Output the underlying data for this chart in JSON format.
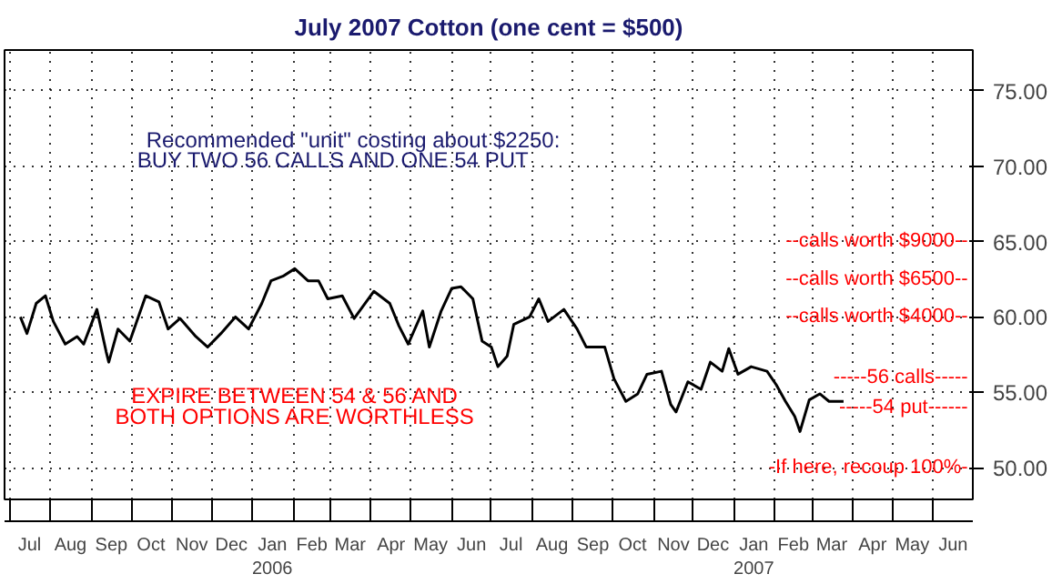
{
  "chart_data": {
    "type": "line",
    "title": "July 2007 Cotton (one cent = $500)",
    "x": [
      "2005-07-09",
      "2005-07-14",
      "2005-07-21",
      "2005-07-28",
      "2005-08-03",
      "2005-08-12",
      "2005-08-21",
      "2005-08-26",
      "2005-09-05",
      "2005-09-12",
      "2005-09-14",
      "2005-09-21",
      "2005-09-30",
      "2005-10-12",
      "2005-10-22",
      "2005-10-29",
      "2005-11-07",
      "2005-11-19",
      "2005-11-28",
      "2005-12-08",
      "2005-12-19",
      "2005-12-29",
      "2006-01-08",
      "2006-01-15",
      "2006-01-24",
      "2006-02-02",
      "2006-02-12",
      "2006-02-20",
      "2006-02-27",
      "2006-03-10",
      "2006-03-19",
      "2006-04-03",
      "2006-04-15",
      "2006-04-22",
      "2006-04-29",
      "2006-05-10",
      "2006-05-15",
      "2006-05-24",
      "2006-06-01",
      "2006-06-08",
      "2006-06-17",
      "2006-06-24",
      "2006-07-01",
      "2006-07-06",
      "2006-07-13",
      "2006-07-18",
      "2006-07-30",
      "2006-08-06",
      "2006-08-13",
      "2006-08-25",
      "2006-09-04",
      "2006-09-11",
      "2006-09-25",
      "2006-10-02",
      "2006-10-11",
      "2006-10-20",
      "2006-10-27",
      "2006-11-07",
      "2006-11-14",
      "2006-11-18",
      "2006-11-27",
      "2006-12-07",
      "2006-12-14",
      "2006-12-23",
      "2006-12-28",
      "2007-01-04",
      "2007-01-14",
      "2007-01-26",
      "2007-02-02",
      "2007-02-09",
      "2007-02-16",
      "2007-02-20",
      "2007-02-27",
      "2007-03-07",
      "2007-03-14",
      "2007-03-25"
    ],
    "series": [
      {
        "color": "#000000",
        "values": [
          60.0,
          58.9,
          60.9,
          61.4,
          59.7,
          58.2,
          58.7,
          58.2,
          60.5,
          57.7,
          57.0,
          59.2,
          58.4,
          61.4,
          61.0,
          59.2,
          59.9,
          58.7,
          58.0,
          58.9,
          60.0,
          59.2,
          60.9,
          62.4,
          62.7,
          63.2,
          62.4,
          62.4,
          61.2,
          61.4,
          59.9,
          61.7,
          60.9,
          59.4,
          58.2,
          60.4,
          58.0,
          60.4,
          61.9,
          62.0,
          61.2,
          58.4,
          58.0,
          56.7,
          57.4,
          59.5,
          60.0,
          61.2,
          59.7,
          60.5,
          59.2,
          58.0,
          58.0,
          55.9,
          54.4,
          54.9,
          56.2,
          56.4,
          54.2,
          53.7,
          55.7,
          55.2,
          57.0,
          56.4,
          57.9,
          56.2,
          56.7,
          56.4,
          55.5,
          54.4,
          53.4,
          52.4,
          54.5,
          54.9,
          54.4,
          54.4
        ]
      }
    ],
    "xlim": [
      "2005-06-27",
      "2007-07-01"
    ],
    "xticks": [
      {
        "value": "2005-07-01",
        "label": null
      },
      {
        "value": "2005-07-16",
        "label": "Jul"
      },
      {
        "value": "2005-08-01",
        "label": null
      },
      {
        "value": "2005-08-16",
        "label": "Aug"
      },
      {
        "value": "2005-09-01",
        "label": null
      },
      {
        "value": "2005-09-16",
        "label": "Sep"
      },
      {
        "value": "2005-10-01",
        "label": null
      },
      {
        "value": "2005-10-16",
        "label": "Oct"
      },
      {
        "value": "2005-11-01",
        "label": null
      },
      {
        "value": "2005-11-16",
        "label": "Nov"
      },
      {
        "value": "2005-12-01",
        "label": null
      },
      {
        "value": "2005-12-16",
        "label": "Dec"
      },
      {
        "value": "2006-01-01",
        "label": null
      },
      {
        "value": "2006-01-16",
        "label": "Jan\n2006"
      },
      {
        "value": "2006-02-01",
        "label": null
      },
      {
        "value": "2006-02-15",
        "label": "Feb"
      },
      {
        "value": "2006-03-01",
        "label": null
      },
      {
        "value": "2006-03-16",
        "label": "Mar"
      },
      {
        "value": "2006-04-01",
        "label": null
      },
      {
        "value": "2006-04-16",
        "label": "Apr"
      },
      {
        "value": "2006-05-01",
        "label": null
      },
      {
        "value": "2006-05-16",
        "label": "May"
      },
      {
        "value": "2006-06-01",
        "label": null
      },
      {
        "value": "2006-06-16",
        "label": "Jun"
      },
      {
        "value": "2006-07-01",
        "label": null
      },
      {
        "value": "2006-07-16",
        "label": "Jul"
      },
      {
        "value": "2006-08-01",
        "label": null
      },
      {
        "value": "2006-08-16",
        "label": "Aug"
      },
      {
        "value": "2006-09-01",
        "label": null
      },
      {
        "value": "2006-09-16",
        "label": "Sep"
      },
      {
        "value": "2006-10-01",
        "label": null
      },
      {
        "value": "2006-10-16",
        "label": "Oct"
      },
      {
        "value": "2006-11-01",
        "label": null
      },
      {
        "value": "2006-11-16",
        "label": "Nov"
      },
      {
        "value": "2006-12-01",
        "label": null
      },
      {
        "value": "2006-12-16",
        "label": "Dec"
      },
      {
        "value": "2007-01-01",
        "label": null
      },
      {
        "value": "2007-01-16",
        "label": "Jan\n2007"
      },
      {
        "value": "2007-02-01",
        "label": null
      },
      {
        "value": "2007-02-15",
        "label": "Feb"
      },
      {
        "value": "2007-03-01",
        "label": null
      },
      {
        "value": "2007-03-16",
        "label": "Mar"
      },
      {
        "value": "2007-04-01",
        "label": null
      },
      {
        "value": "2007-04-16",
        "label": "Apr"
      },
      {
        "value": "2007-05-01",
        "label": null
      },
      {
        "value": "2007-05-16",
        "label": "May"
      },
      {
        "value": "2007-06-01",
        "label": null
      },
      {
        "value": "2007-06-16",
        "label": "Jun"
      }
    ],
    "ylim": [
      47.9,
      77.7
    ],
    "yticks": [
      {
        "value": 50,
        "label": "50.00"
      },
      {
        "value": 55,
        "label": "55.00"
      },
      {
        "value": 60,
        "label": "60.00"
      },
      {
        "value": 65,
        "label": "65.00"
      },
      {
        "value": 70,
        "label": "70.00"
      },
      {
        "value": 75,
        "label": "75.00"
      }
    ],
    "grid": true,
    "annotations": [
      "Recommended \"unit\" costing about $2250:",
      "BUY TWO 56 CALLS AND ONE 54 PUT",
      "EXPIRE BETWEEN 54 & 56 AND",
      "BOTH OPTIONS ARE WORTHLESS",
      "--calls worth $9000--",
      "--calls worth $6500--",
      "--calls worth $4000--",
      "-----56 calls-----",
      "-----54 put------",
      "-If here, recoup 100%-"
    ]
  }
}
